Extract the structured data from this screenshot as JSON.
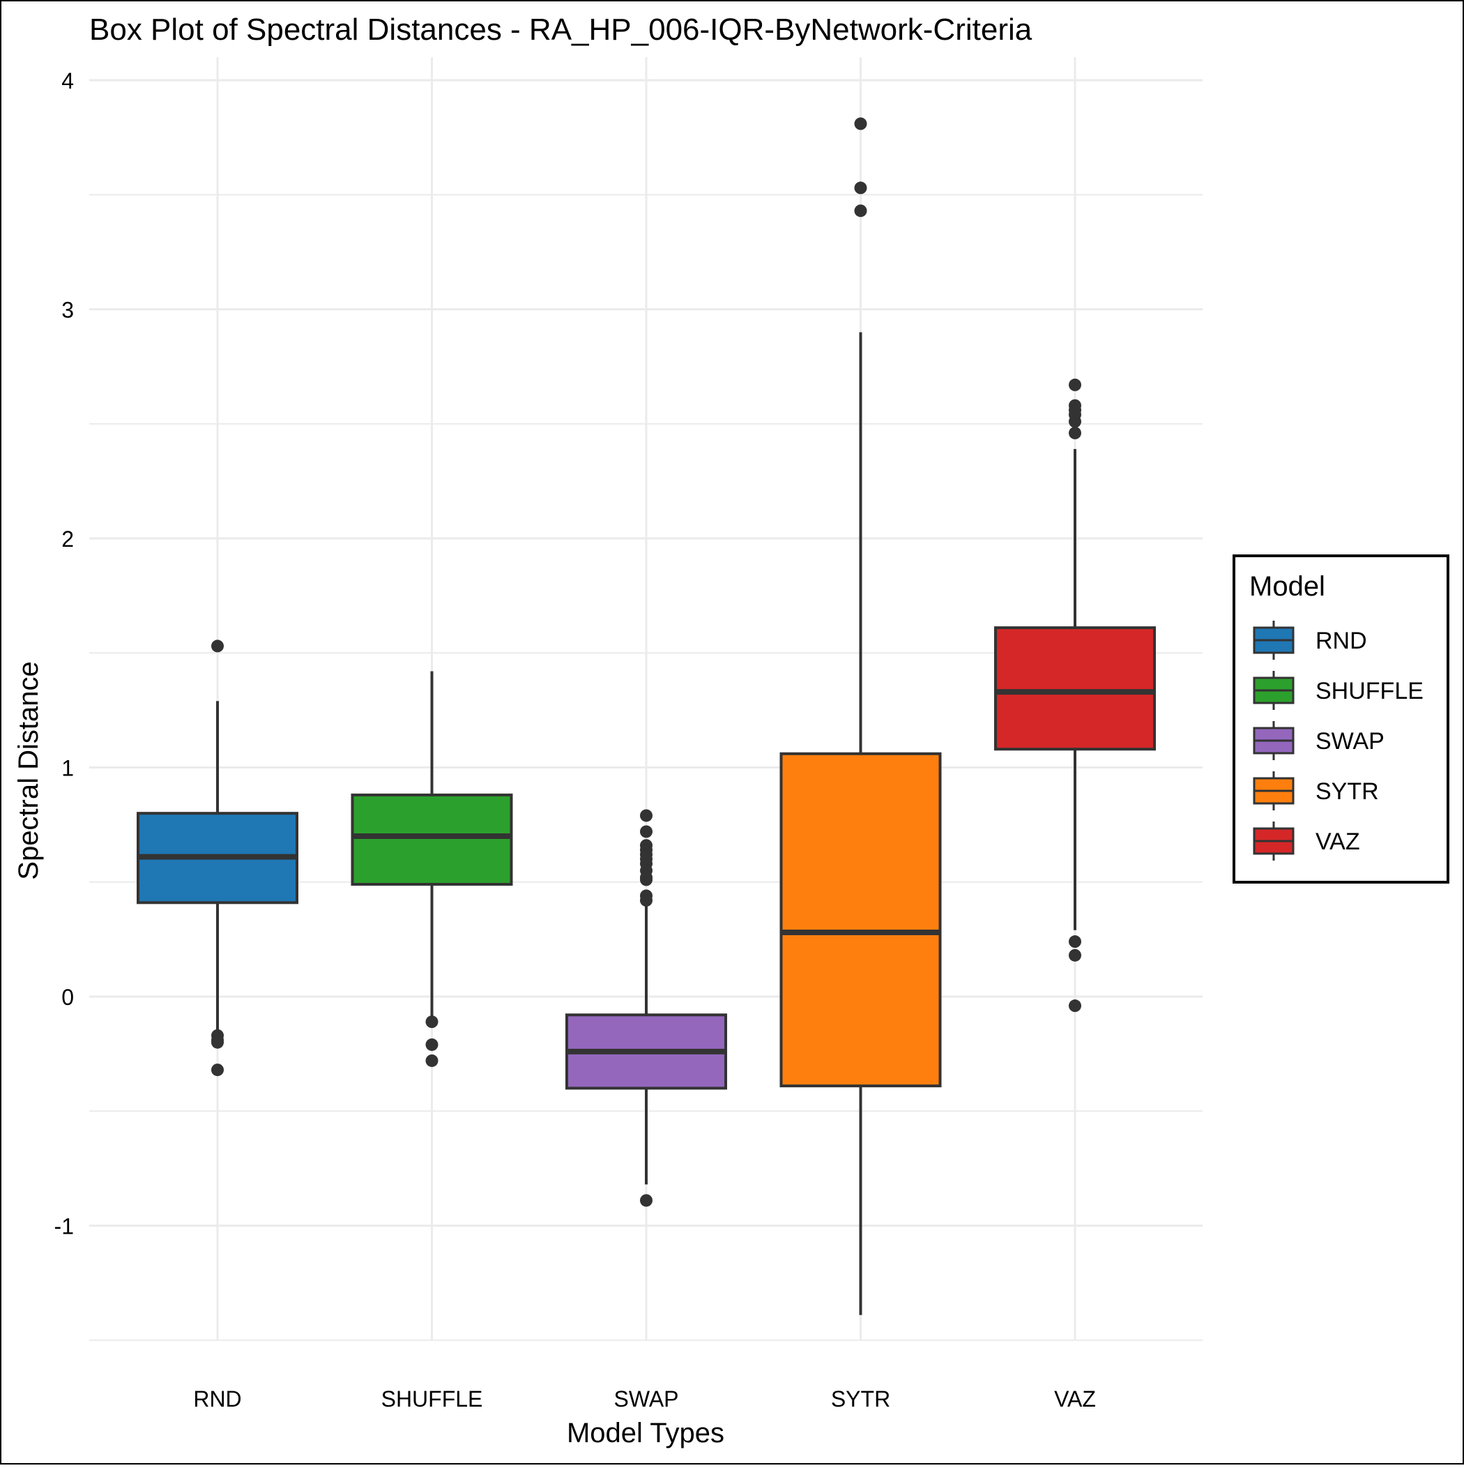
{
  "chart_data": {
    "type": "box",
    "title": "Box Plot of Spectral Distances -  RA_HP_006-IQR-ByNetwork-Criteria",
    "xlabel": "Model Types",
    "ylabel": "Spectral Distance",
    "ylim": [
      -1.5,
      4.1
    ],
    "y_major_ticks": [
      -1,
      0,
      1,
      2,
      3,
      4
    ],
    "y_minor_ticks": [
      -1.5,
      -0.5,
      0.5,
      1.5,
      2.5,
      3.5
    ],
    "y_tick_labels": [
      "-1",
      "0",
      "1",
      "2",
      "3",
      "4"
    ],
    "grid": true,
    "legend": {
      "title": "Model",
      "position": "right"
    },
    "categories": [
      "RND",
      "SHUFFLE",
      "SWAP",
      "SYTR",
      "VAZ"
    ],
    "series": [
      {
        "name": "RND",
        "color": "#1f77b4",
        "whisker_low": -0.18,
        "q1": 0.41,
        "median": 0.61,
        "q3": 0.8,
        "whisker_high": 1.29,
        "outliers": [
          1.53,
          -0.17,
          -0.19,
          -0.2,
          -0.32
        ]
      },
      {
        "name": "SHUFFLE",
        "color": "#2ca02c",
        "whisker_low": -0.1,
        "q1": 0.49,
        "median": 0.7,
        "q3": 0.88,
        "whisker_high": 1.42,
        "outliers": [
          -0.11,
          -0.21,
          -0.28
        ]
      },
      {
        "name": "SWAP",
        "color": "#9467bd",
        "whisker_low": -0.82,
        "q1": -0.4,
        "median": -0.24,
        "q3": -0.08,
        "whisker_high": 0.4,
        "outliers": [
          0.79,
          0.72,
          0.66,
          0.64,
          0.62,
          0.6,
          0.58,
          0.55,
          0.52,
          0.51,
          0.44,
          0.42,
          -0.89
        ]
      },
      {
        "name": "SYTR",
        "color": "#ff7f0e",
        "whisker_low": -1.39,
        "q1": -0.39,
        "median": 0.28,
        "q3": 1.06,
        "whisker_high": 2.9,
        "outliers": [
          3.81,
          3.53,
          3.43
        ]
      },
      {
        "name": "VAZ",
        "color": "#d62728",
        "whisker_low": 0.29,
        "q1": 1.08,
        "median": 1.33,
        "q3": 1.61,
        "whisker_high": 2.39,
        "outliers": [
          2.67,
          2.58,
          2.56,
          2.54,
          2.51,
          2.46,
          0.24,
          0.18,
          -0.04
        ]
      }
    ]
  }
}
